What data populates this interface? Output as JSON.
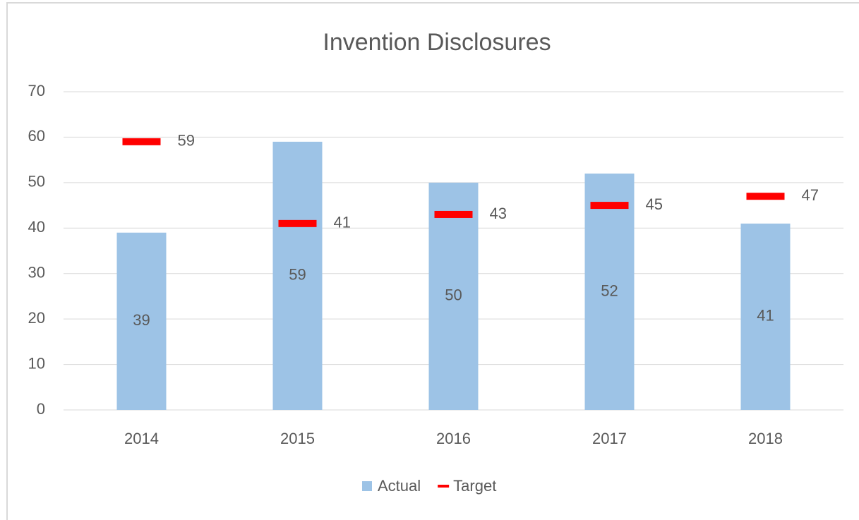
{
  "chart_data": {
    "type": "bar",
    "title": "Invention Disclosures",
    "categories": [
      "2014",
      "2015",
      "2016",
      "2017",
      "2018"
    ],
    "series": [
      {
        "name": "Actual",
        "color": "#9dc3e6",
        "values": [
          39,
          59,
          50,
          52,
          41
        ]
      },
      {
        "name": "Target",
        "color": "#ff0000",
        "values": [
          59,
          41,
          43,
          45,
          47
        ],
        "mark": "dash"
      }
    ],
    "ylim": [
      0,
      70
    ],
    "yticks": [
      0,
      10,
      20,
      30,
      40,
      50,
      60,
      70
    ],
    "grid": true,
    "legend": "bottom"
  }
}
